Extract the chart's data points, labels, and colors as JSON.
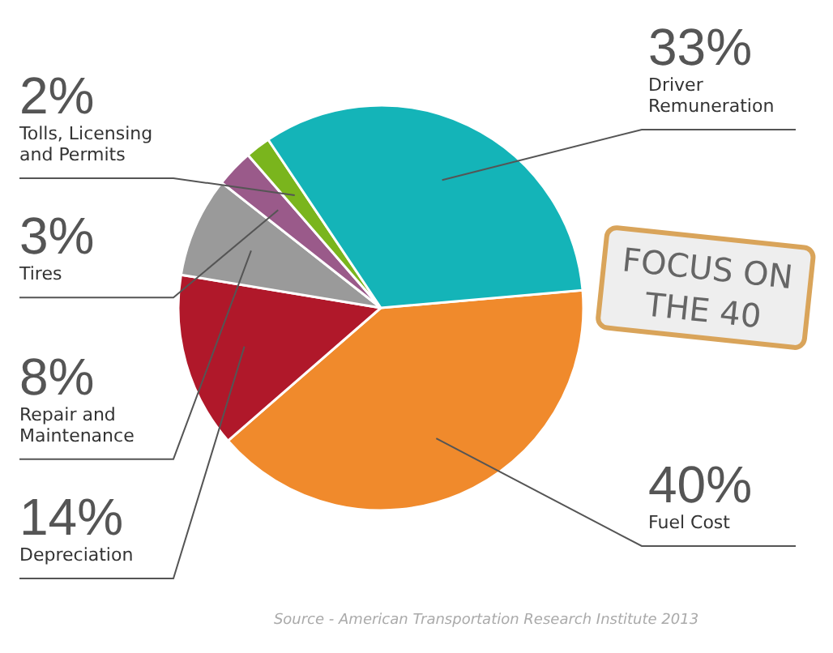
{
  "chart_data": {
    "type": "pie",
    "categories": [
      "Fuel Cost",
      "Depreciation",
      "Repair and Maintenance",
      "Tires",
      "Tolls, Licensing and Permits",
      "Driver Remuneration"
    ],
    "values": [
      40,
      14,
      8,
      3,
      2,
      33
    ],
    "colors": [
      "#f08a2c",
      "#b0182a",
      "#9a9a9a",
      "#9a5a8a",
      "#7ab51d",
      "#14b4b8"
    ],
    "value_labels": [
      "40%",
      "14%",
      "8%",
      "3%",
      "2%",
      "33%"
    ],
    "annotations": [
      "FOCUS ON THE 40",
      "Source - American Transportation Research Institute 2013"
    ]
  }
}
